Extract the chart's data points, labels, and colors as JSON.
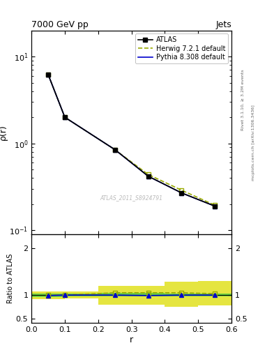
{
  "title_left": "7000 GeV pp",
  "title_right": "Jets",
  "ylabel_main": "ρ(r)",
  "ylabel_ratio": "Ratio to ATLAS",
  "xlabel": "r",
  "watermark": "ATLAS_2011_S8924791",
  "right_label_top": "Rivet 3.1.10, ≥ 3.2M events",
  "right_label_bot": "mcplots.cern.ch [arXiv:1306.3436]",
  "atlas_x": [
    0.05,
    0.1,
    0.25,
    0.35,
    0.45,
    0.55
  ],
  "atlas_y": [
    6.2,
    2.0,
    0.85,
    0.42,
    0.27,
    0.19
  ],
  "herwig_x": [
    0.05,
    0.1,
    0.25,
    0.35,
    0.45,
    0.55
  ],
  "herwig_y": [
    6.2,
    2.0,
    0.85,
    0.44,
    0.29,
    0.195
  ],
  "pythia_x": [
    0.05,
    0.1,
    0.25,
    0.35,
    0.45,
    0.55
  ],
  "pythia_y": [
    6.2,
    2.0,
    0.85,
    0.42,
    0.27,
    0.19
  ],
  "herwig_ratio": [
    1.0,
    1.0,
    1.05,
    1.05,
    1.05,
    1.03
  ],
  "pythia_ratio": [
    0.99,
    1.0,
    1.0,
    0.99,
    1.0,
    1.0
  ],
  "band_edges": [
    0.0,
    0.1,
    0.2,
    0.3,
    0.4,
    0.5,
    0.6
  ],
  "band_green_lo": [
    0.96,
    0.97,
    0.97,
    0.97,
    0.97,
    0.97
  ],
  "band_green_hi": [
    1.04,
    1.03,
    1.05,
    1.05,
    1.04,
    1.04
  ],
  "band_yellow_lo": [
    0.92,
    0.93,
    0.8,
    0.8,
    0.75,
    0.78
  ],
  "band_yellow_hi": [
    1.08,
    1.07,
    1.2,
    1.2,
    1.28,
    1.3
  ],
  "xlim": [
    0,
    0.6
  ],
  "ylim_main": [
    0.09,
    20
  ],
  "ylim_ratio": [
    0.4,
    2.3
  ],
  "yticks_ratio": [
    0.5,
    1.0,
    2.0
  ],
  "ytick_labels_ratio": [
    "0.5",
    "1",
    "2"
  ],
  "color_atlas": "#000000",
  "color_herwig": "#99aa00",
  "color_pythia": "#0000cc",
  "color_green": "#44cc44",
  "color_yellow": "#dddd00",
  "bg_color": "#ffffff"
}
